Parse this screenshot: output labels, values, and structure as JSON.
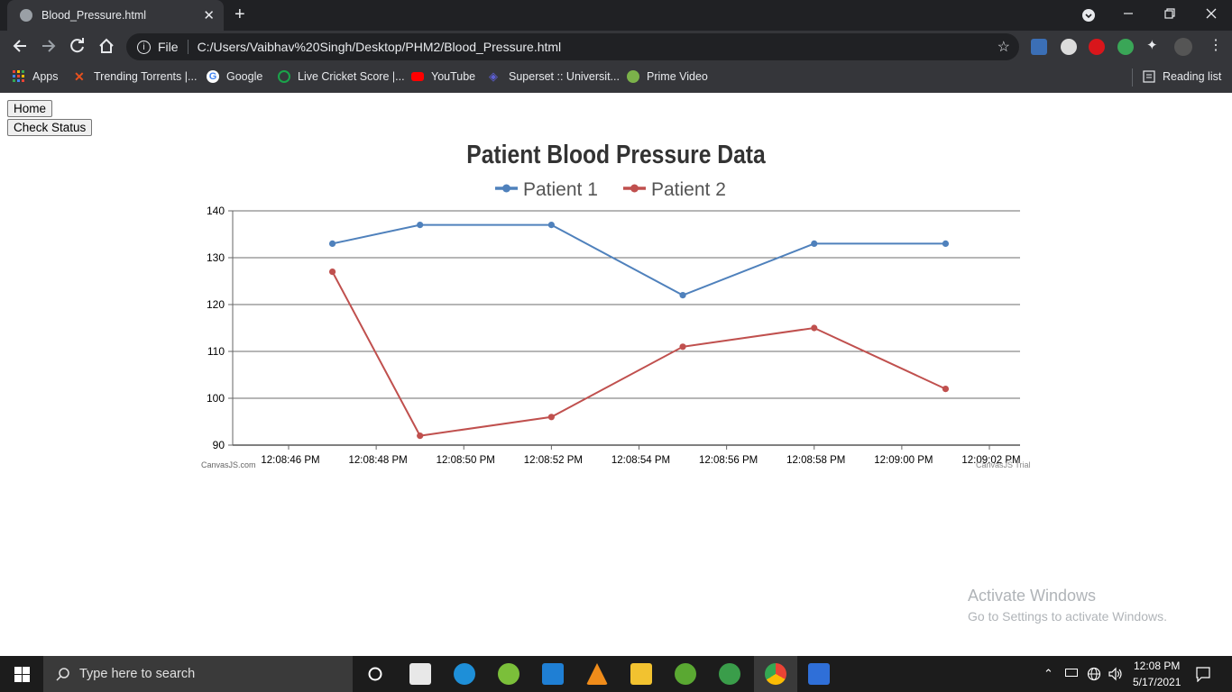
{
  "browser": {
    "tab_title": "Blood_Pressure.html",
    "tab_close": "✕",
    "new_tab": "+",
    "file_label": "File",
    "address": "C:/Users/Vaibhav%20Singh/Desktop/PHM2/Blood_Pressure.html",
    "bookmarks": [
      {
        "label": "Apps",
        "icon": "apps-grid-icon",
        "color": "#ea4335"
      },
      {
        "label": "Trending Torrents |...",
        "icon": "x-icon",
        "color": "#e8511e"
      },
      {
        "label": "Google",
        "icon": "google-icon",
        "color": "#4285f4"
      },
      {
        "label": "Live Cricket Score |...",
        "icon": "cricket-icon",
        "color": "#1aa34a"
      },
      {
        "label": "YouTube",
        "icon": "youtube-icon",
        "color": "#ff0000"
      },
      {
        "label": "Superset :: Universit...",
        "icon": "superset-icon",
        "color": "#5d5fd3"
      },
      {
        "label": "Prime Video",
        "icon": "prime-video-icon",
        "color": "#7bb24a"
      }
    ],
    "reading_list": "Reading list"
  },
  "page": {
    "home_button": "Home",
    "check_status_button": "Check Status"
  },
  "chart_data": {
    "type": "line",
    "title": "Patient Blood Pressure Data",
    "x": [
      "12:08:47",
      "12:08:49",
      "12:08:52",
      "12:08:55",
      "12:08:58",
      "12:09:01"
    ],
    "x_ticks": [
      "12:08:46 PM",
      "12:08:48 PM",
      "12:08:50 PM",
      "12:08:52 PM",
      "12:08:54 PM",
      "12:08:56 PM",
      "12:08:58 PM",
      "12:09:00 PM",
      "12:09:02 PM"
    ],
    "y_ticks": [
      90,
      100,
      110,
      120,
      130,
      140
    ],
    "ylim": [
      90,
      140
    ],
    "xlabel": "",
    "ylabel": "",
    "grid": "horizontal",
    "legend": "top-center",
    "series": [
      {
        "name": "Patient 1",
        "color": "#4f81bc",
        "values": [
          133,
          137,
          137,
          122,
          133,
          133
        ]
      },
      {
        "name": "Patient 2",
        "color": "#c0504e",
        "values": [
          127,
          92,
          96,
          111,
          115,
          102
        ]
      }
    ],
    "credit_left": "CanvasJS.com",
    "credit_right": "CanvasJS Trial"
  },
  "watermark": {
    "line1": "Activate Windows",
    "line2": "Go to Settings to activate Windows."
  },
  "taskbar": {
    "search_placeholder": "Type here to search",
    "time": "12:08 PM",
    "date": "5/17/2021"
  }
}
